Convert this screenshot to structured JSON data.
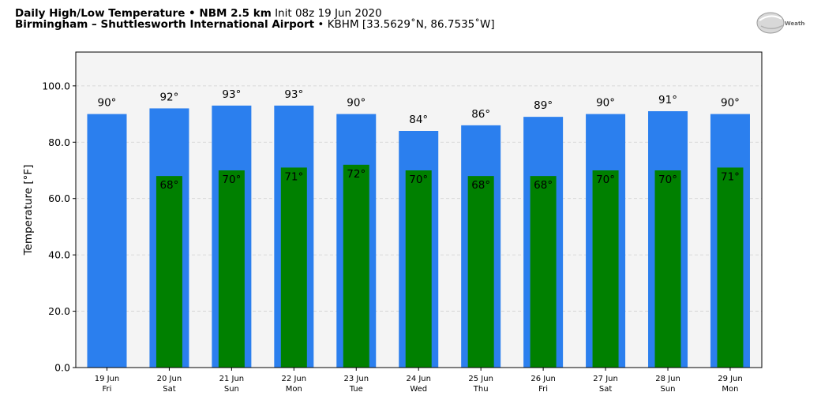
{
  "header": {
    "title": "Daily High/Low Temperature",
    "sep1": " • ",
    "model": "NBM 2.5 km",
    "init": " Init 08z 19 Jun 2020",
    "station": "Birmingham – Shuttlesworth International Airport",
    "sep2": " • ",
    "station_detail": "KBHM [33.5629˚N, 86.7535˚W]"
  },
  "logo": {
    "icon": "weatherbell-logo",
    "text": "WeatherBELL"
  },
  "colors": {
    "high": "#2b7fee",
    "low": "#008000",
    "plot_bg": "#f4f4f4"
  },
  "chart_data": {
    "type": "bar",
    "ylabel": "Temperature [°F]",
    "ylim": [
      0,
      112
    ],
    "yticks": [
      "0.0",
      "20.0",
      "40.0",
      "60.0",
      "80.0",
      "100.0"
    ],
    "grid": true,
    "categories": [
      {
        "date": "19 Jun",
        "day": "Fri"
      },
      {
        "date": "20 Jun",
        "day": "Sat"
      },
      {
        "date": "21 Jun",
        "day": "Sun"
      },
      {
        "date": "22 Jun",
        "day": "Mon"
      },
      {
        "date": "23 Jun",
        "day": "Tue"
      },
      {
        "date": "24 Jun",
        "day": "Wed"
      },
      {
        "date": "25 Jun",
        "day": "Thu"
      },
      {
        "date": "26 Jun",
        "day": "Fri"
      },
      {
        "date": "27 Jun",
        "day": "Sat"
      },
      {
        "date": "28 Jun",
        "day": "Sun"
      },
      {
        "date": "29 Jun",
        "day": "Mon"
      }
    ],
    "series": [
      {
        "values": [
          90,
          92,
          93,
          93,
          90,
          84,
          86,
          89,
          90,
          91,
          90
        ],
        "labels": [
          "90°",
          "92°",
          "93°",
          "93°",
          "90°",
          "84°",
          "86°",
          "89°",
          "90°",
          "91°",
          "90°"
        ]
      },
      {
        "values": [
          null,
          68,
          70,
          71,
          72,
          70,
          68,
          68,
          70,
          70,
          71
        ],
        "labels": [
          "",
          "68°",
          "70°",
          "71°",
          "72°",
          "70°",
          "68°",
          "68°",
          "70°",
          "70°",
          "71°"
        ]
      }
    ]
  }
}
